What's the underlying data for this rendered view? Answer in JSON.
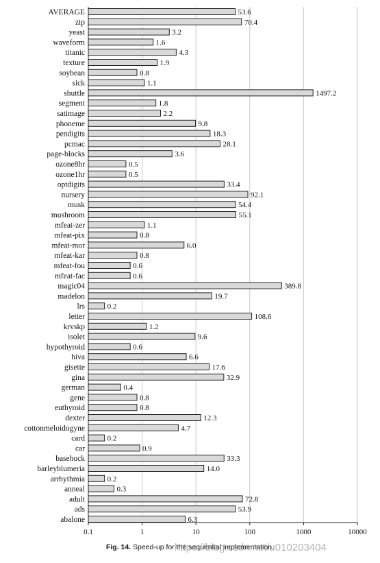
{
  "chart_data": {
    "type": "bar",
    "orientation": "horizontal",
    "x_scale": "log",
    "xlim": [
      0.1,
      10000
    ],
    "x_ticks": [
      "0.1",
      "1",
      "10",
      "100",
      "1000",
      "10000"
    ],
    "grid": "vertical gridlines at powers of ten",
    "categories": [
      "AVERAGE",
      "zip",
      "yeast",
      "waveform",
      "titanic",
      "texture",
      "soybean",
      "sick",
      "shuttle",
      "segment",
      "satimage",
      "phoneme",
      "pendigits",
      "pcmac",
      "page-blocks",
      "ozone8hr",
      "ozone1hr",
      "optdigits",
      "nursery",
      "musk",
      "mushroom",
      "mfeat-zer",
      "mfeat-pix",
      "mfeat-mor",
      "mfeat-kar",
      "mfeat-fou",
      "mfeat-fac",
      "magic04",
      "madelon",
      "lrs",
      "letter",
      "krvskp",
      "isolet",
      "hypothyroid",
      "hiva",
      "gisette",
      "gina",
      "german",
      "gene",
      "euthyroid",
      "dexter",
      "cottonmeloidogyne",
      "card",
      "car",
      "basehock",
      "barleyblumeria",
      "arrhythmia",
      "anneal",
      "adult",
      "ads",
      "abalone"
    ],
    "values": [
      53.6,
      70.4,
      3.2,
      1.6,
      4.3,
      1.9,
      0.8,
      1.1,
      1497.2,
      1.8,
      2.2,
      9.8,
      18.3,
      28.1,
      3.6,
      0.5,
      0.5,
      33.4,
      92.1,
      54.4,
      55.1,
      1.1,
      0.8,
      6.0,
      0.8,
      0.6,
      0.6,
      389.8,
      19.7,
      0.2,
      108.6,
      1.2,
      9.6,
      0.6,
      6.6,
      17.6,
      32.9,
      0.4,
      0.8,
      0.8,
      12.3,
      4.7,
      0.2,
      0.9,
      33.3,
      14.0,
      0.2,
      0.3,
      72.8,
      53.9,
      6.3
    ],
    "value_labels": [
      "53.6",
      "70.4",
      "3.2",
      "1.6",
      "4.3",
      "1.9",
      "0.8",
      "1.1",
      "1497.2",
      "1.8",
      "2.2",
      "9.8",
      "18.3",
      "28.1",
      "3.6",
      "0.5",
      "0.5",
      "33.4",
      "92.1",
      "54.4",
      "55.1",
      "1.1",
      "0.8",
      "6.0",
      "0.8",
      "0.6",
      "0.6",
      "389.8",
      "19.7",
      "0.2",
      "108.6",
      "1.2",
      "9.6",
      "0.6",
      "6.6",
      "17.6",
      "32.9",
      "0.4",
      "0.8",
      "0.8",
      "12.3",
      "4.7",
      "0.2",
      "0.9",
      "33.3",
      "14.0",
      "0.2",
      "0.3",
      "72.8",
      "53.9",
      "6.3"
    ],
    "bar_color": "#d9d9d9",
    "bar_outline": "#222222"
  },
  "caption": {
    "prefix": "Fig. 14.",
    "text": "Speed-up for the sequential implementation."
  },
  "watermark": "https://blog.csdn.net/u010203404"
}
